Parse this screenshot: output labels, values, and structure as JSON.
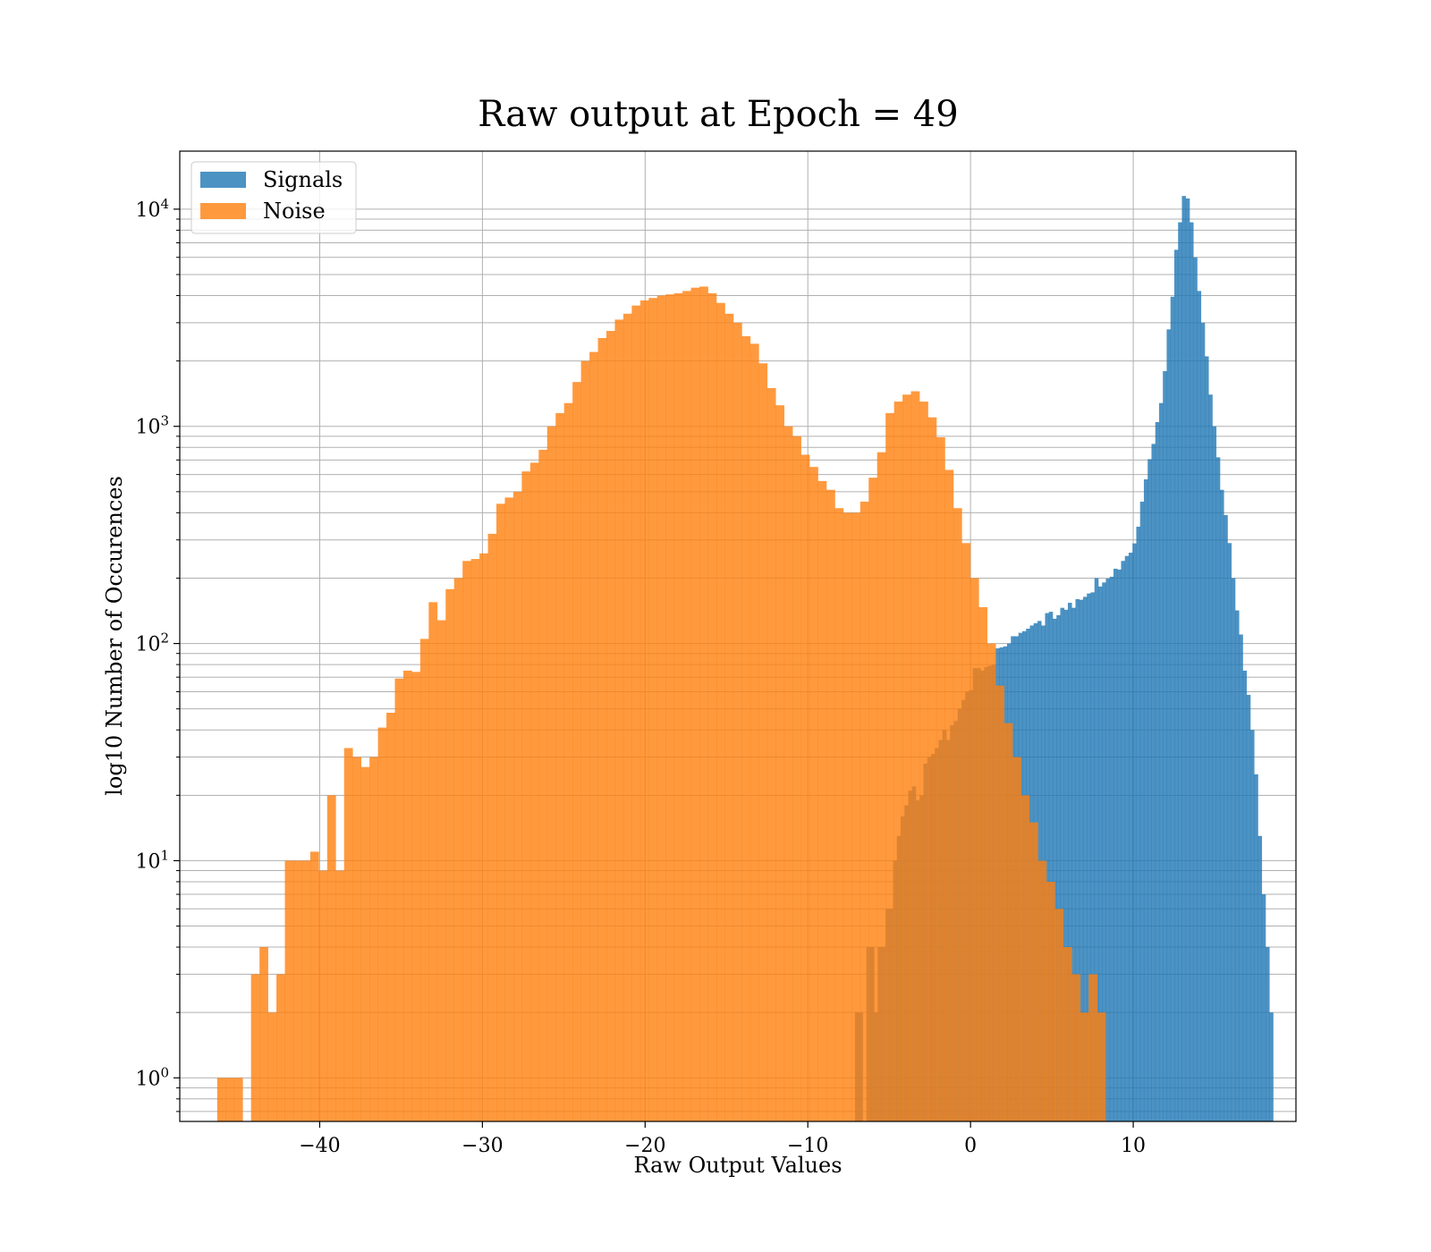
{
  "chart_data": {
    "type": "bar",
    "title": "Raw output at Epoch = 49",
    "xlabel": "Raw Output Values",
    "ylabel": "log10 Number of Occurences",
    "yscale": "log",
    "xlim": [
      -48.6,
      20.0
    ],
    "ylim": [
      0.63,
      18500
    ],
    "grid": true,
    "legend_position": "top-left",
    "xticks": [
      {
        "value": -40,
        "label": "−40"
      },
      {
        "value": -30,
        "label": "−30"
      },
      {
        "value": -20,
        "label": "−20"
      },
      {
        "value": -10,
        "label": "−10"
      },
      {
        "value": 0,
        "label": "0"
      },
      {
        "value": 10,
        "label": "10"
      }
    ],
    "yticks": [
      {
        "value": 1,
        "base": "10",
        "exp": "0"
      },
      {
        "value": 10,
        "base": "10",
        "exp": "1"
      },
      {
        "value": 100,
        "base": "10",
        "exp": "2"
      },
      {
        "value": 1000,
        "base": "10",
        "exp": "3"
      },
      {
        "value": 10000,
        "base": "10",
        "exp": "4"
      }
    ],
    "series": [
      {
        "name": "Signals",
        "color": "#1f77b4",
        "alpha": 0.8,
        "bin_start": -7.1,
        "bin_width": 0.2336,
        "values": [
          2,
          2,
          0,
          4,
          4,
          2,
          4,
          4,
          6,
          6,
          10,
          13,
          16,
          18,
          21,
          22,
          19,
          20,
          28,
          30,
          31,
          33,
          36,
          40,
          36,
          42,
          44,
          50,
          55,
          60,
          61,
          77,
          77,
          75,
          78,
          79,
          80,
          95,
          96,
          97,
          100,
          108,
          108,
          112,
          114,
          117,
          121,
          124,
          127,
          121,
          138,
          140,
          130,
          135,
          146,
          143,
          154,
          146,
          160,
          159,
          164,
          170,
          172,
          200,
          183,
          191,
          199,
          203,
          221,
          219,
          240,
          253,
          262,
          289,
          345,
          450,
          570,
          706,
          830,
          1046,
          1280,
          1795,
          2795,
          3952,
          6500,
          8700,
          11500,
          11200,
          8700,
          6000,
          4200,
          3000,
          2100,
          1400,
          1000,
          720,
          510,
          390,
          290,
          200,
          142,
          110,
          75,
          58,
          40,
          25,
          13,
          7,
          4,
          2
        ]
      },
      {
        "name": "Noise",
        "color": "#ff7f0e",
        "alpha": 0.8,
        "bin_start": -46.3,
        "bin_width": 0.52,
        "values": [
          1,
          1,
          1,
          0,
          3,
          4,
          2,
          3,
          10,
          10,
          10,
          11,
          9,
          20,
          9,
          33,
          30,
          27,
          30,
          41,
          48,
          69,
          75,
          74,
          105,
          155,
          128,
          178,
          200,
          240,
          245,
          260,
          320,
          440,
          470,
          500,
          620,
          680,
          780,
          1000,
          1150,
          1280,
          1600,
          2000,
          2200,
          2550,
          2750,
          3100,
          3300,
          3600,
          3800,
          3900,
          4000,
          4050,
          4100,
          4200,
          4350,
          4400,
          4100,
          3700,
          3300,
          3000,
          2600,
          2400,
          1950,
          1500,
          1250,
          1000,
          900,
          740,
          650,
          560,
          510,
          420,
          400,
          400,
          450,
          580,
          760,
          1150,
          1300,
          1400,
          1450,
          1300,
          1100,
          890,
          630,
          420,
          290,
          200,
          147,
          100,
          64,
          43,
          30,
          20,
          15,
          10,
          8,
          6,
          4,
          3,
          2,
          3,
          2
        ]
      }
    ]
  }
}
